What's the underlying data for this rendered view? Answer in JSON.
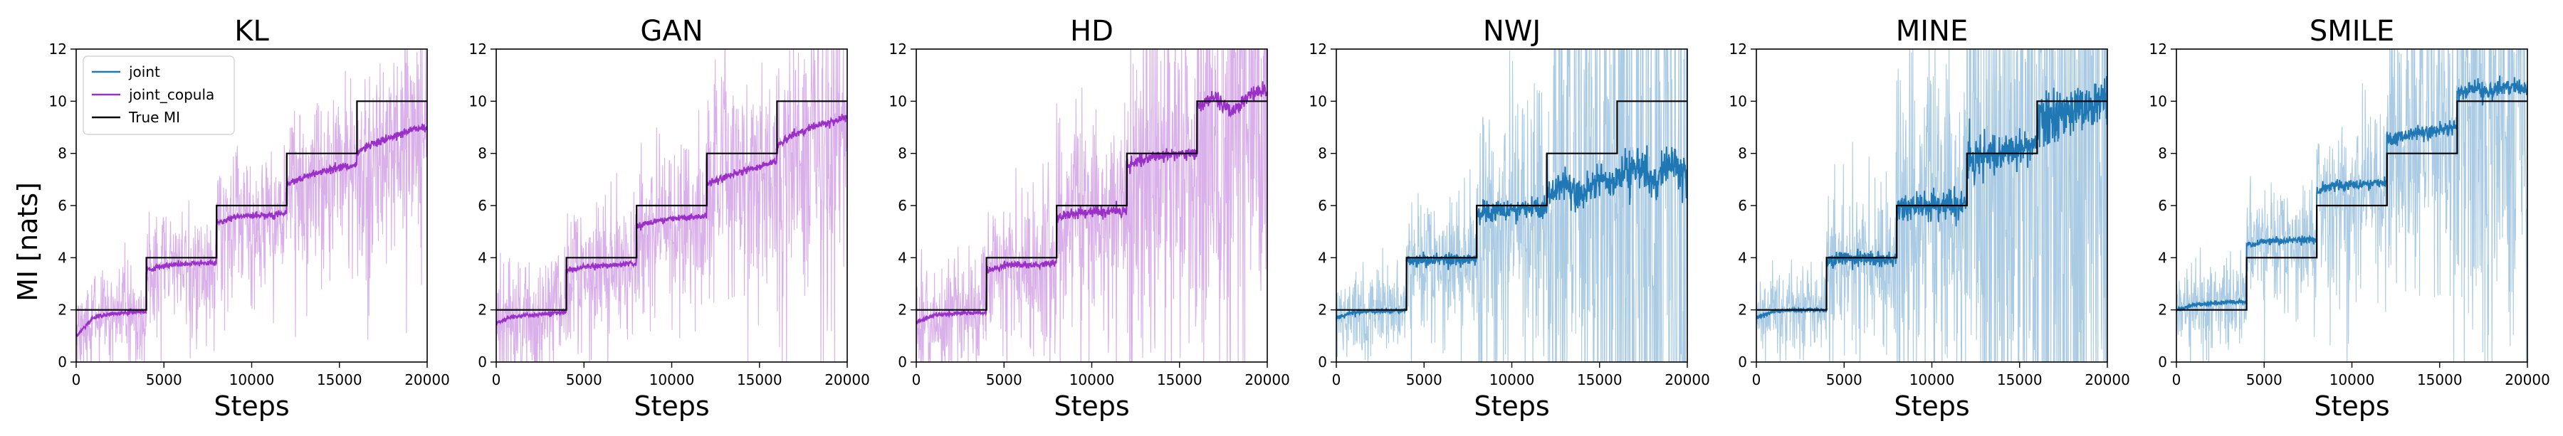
{
  "figure": {
    "ylabel": "MI [nats]",
    "legend_entries": [
      {
        "name": "joint",
        "color": "#1f77b4"
      },
      {
        "name": "joint_copula",
        "color": "#9b30c8"
      },
      {
        "name": "True MI",
        "color": "#000000"
      }
    ]
  },
  "chart_data": [
    {
      "type": "line",
      "title": "KL",
      "xlabel": "Steps",
      "xlim": [
        0,
        20000
      ],
      "ylim": [
        0,
        12
      ],
      "xticks": [
        0,
        5000,
        10000,
        15000,
        20000
      ],
      "yticks": [
        0,
        2,
        4,
        6,
        8,
        10,
        12
      ],
      "true_mi": {
        "name": "True MI",
        "x_breaks": [
          0,
          4000,
          8000,
          12000,
          16000,
          20000
        ],
        "levels": [
          2,
          4,
          6,
          8,
          10
        ]
      },
      "series": [
        {
          "name": "joint_copula",
          "color": "#9b30c8",
          "x": [
            0,
            1000,
            2000,
            3000,
            3999,
            4000,
            5000,
            6000,
            7000,
            7999,
            8000,
            9000,
            10000,
            11000,
            11999,
            12000,
            13000,
            14000,
            15000,
            15999,
            16000,
            17000,
            18000,
            19000,
            20000
          ],
          "y": [
            1.0,
            1.7,
            1.85,
            1.9,
            1.95,
            3.5,
            3.7,
            3.75,
            3.8,
            3.8,
            5.3,
            5.55,
            5.6,
            5.65,
            5.7,
            6.8,
            7.1,
            7.3,
            7.45,
            7.55,
            8.0,
            8.4,
            8.6,
            8.9,
            9.05
          ],
          "noise": 0.9,
          "noise_growth": 0.25
        }
      ]
    },
    {
      "type": "line",
      "title": "GAN",
      "xlabel": "Steps",
      "xlim": [
        0,
        20000
      ],
      "ylim": [
        0,
        12
      ],
      "xticks": [
        0,
        5000,
        10000,
        15000,
        20000
      ],
      "yticks": [
        0,
        2,
        4,
        6,
        8,
        10,
        12
      ],
      "true_mi": {
        "name": "True MI",
        "x_breaks": [
          0,
          4000,
          8000,
          12000,
          16000,
          20000
        ],
        "levels": [
          2,
          4,
          6,
          8,
          10
        ]
      },
      "series": [
        {
          "name": "joint_copula",
          "color": "#9b30c8",
          "x": [
            0,
            1000,
            2000,
            3000,
            3999,
            4000,
            5000,
            6000,
            7000,
            7999,
            8000,
            9000,
            10000,
            11000,
            11999,
            12000,
            13000,
            14000,
            15000,
            15999,
            16000,
            17000,
            18000,
            19000,
            20000
          ],
          "y": [
            1.5,
            1.75,
            1.8,
            1.85,
            1.9,
            3.5,
            3.65,
            3.7,
            3.75,
            3.8,
            5.2,
            5.4,
            5.5,
            5.55,
            5.6,
            6.8,
            7.1,
            7.3,
            7.5,
            7.7,
            8.3,
            8.7,
            9.0,
            9.2,
            9.4
          ],
          "noise": 1.2,
          "noise_growth": 0.25
        }
      ]
    },
    {
      "type": "line",
      "title": "HD",
      "xlabel": "Steps",
      "xlim": [
        0,
        20000
      ],
      "ylim": [
        0,
        12
      ],
      "xticks": [
        0,
        5000,
        10000,
        15000,
        20000
      ],
      "yticks": [
        0,
        2,
        4,
        6,
        8,
        10,
        12
      ],
      "true_mi": {
        "name": "True MI",
        "x_breaks": [
          0,
          4000,
          8000,
          12000,
          16000,
          20000
        ],
        "levels": [
          2,
          4,
          6,
          8,
          10
        ]
      },
      "series": [
        {
          "name": "joint_copula",
          "color": "#9b30c8",
          "x": [
            0,
            1000,
            2000,
            3000,
            3999,
            4000,
            5000,
            6000,
            7000,
            7999,
            8000,
            9000,
            10000,
            11000,
            11999,
            12000,
            13000,
            14000,
            15000,
            15999,
            16000,
            17000,
            18000,
            19000,
            20000
          ],
          "y": [
            1.5,
            1.8,
            1.85,
            1.9,
            1.9,
            3.5,
            3.7,
            3.75,
            3.75,
            3.8,
            5.5,
            5.7,
            5.75,
            5.75,
            5.8,
            7.5,
            7.8,
            7.9,
            7.95,
            8.0,
            9.8,
            10.1,
            9.6,
            10.2,
            10.5
          ],
          "noise": 1.1,
          "noise_growth": 0.7
        }
      ]
    },
    {
      "type": "line",
      "title": "NWJ",
      "xlabel": "Steps",
      "xlim": [
        0,
        20000
      ],
      "ylim": [
        0,
        12
      ],
      "xticks": [
        0,
        5000,
        10000,
        15000,
        20000
      ],
      "yticks": [
        0,
        2,
        4,
        6,
        8,
        10,
        12
      ],
      "true_mi": {
        "name": "True MI",
        "x_breaks": [
          0,
          4000,
          8000,
          12000,
          16000,
          20000
        ],
        "levels": [
          2,
          4,
          6,
          8,
          10
        ]
      },
      "series": [
        {
          "name": "joint",
          "color": "#1f77b4",
          "x": [
            0,
            1000,
            2000,
            3000,
            3999,
            4000,
            5000,
            6000,
            7000,
            7999,
            8000,
            9000,
            10000,
            11000,
            11999,
            12000,
            13000,
            14000,
            15000,
            15999,
            16000,
            17000,
            18000,
            19000,
            20000
          ],
          "y": [
            1.7,
            1.9,
            1.95,
            1.95,
            2.0,
            3.8,
            3.9,
            3.95,
            3.95,
            4.0,
            5.6,
            5.8,
            5.85,
            5.9,
            5.9,
            6.5,
            6.8,
            6.4,
            7.0,
            6.9,
            7.0,
            7.5,
            6.8,
            7.6,
            7.2
          ],
          "noise": 0.8,
          "noise_growth": 2.2
        }
      ]
    },
    {
      "type": "line",
      "title": "MINE",
      "xlabel": "Steps",
      "xlim": [
        0,
        20000
      ],
      "ylim": [
        0,
        12
      ],
      "xticks": [
        0,
        5000,
        10000,
        15000,
        20000
      ],
      "yticks": [
        0,
        2,
        4,
        6,
        8,
        10,
        12
      ],
      "true_mi": {
        "name": "True MI",
        "x_breaks": [
          0,
          4000,
          8000,
          12000,
          16000,
          20000
        ],
        "levels": [
          2,
          4,
          6,
          8,
          10
        ]
      },
      "series": [
        {
          "name": "joint",
          "color": "#1f77b4",
          "x": [
            0,
            1000,
            2000,
            3000,
            3999,
            4000,
            5000,
            6000,
            7000,
            7999,
            8000,
            9000,
            10000,
            11000,
            11999,
            12000,
            13000,
            14000,
            15000,
            15999,
            16000,
            17000,
            18000,
            19000,
            20000
          ],
          "y": [
            1.7,
            1.95,
            2.0,
            2.0,
            2.0,
            3.85,
            3.95,
            3.95,
            4.0,
            4.0,
            5.85,
            5.95,
            6.0,
            6.0,
            6.0,
            7.7,
            7.9,
            8.0,
            8.1,
            8.2,
            9.2,
            9.5,
            9.7,
            9.8,
            10.0
          ],
          "noise": 0.8,
          "noise_growth": 2.8
        }
      ]
    },
    {
      "type": "line",
      "title": "SMILE",
      "xlabel": "Steps",
      "xlim": [
        0,
        20000
      ],
      "ylim": [
        0,
        12
      ],
      "xticks": [
        0,
        5000,
        10000,
        15000,
        20000
      ],
      "yticks": [
        0,
        2,
        4,
        6,
        8,
        10,
        12
      ],
      "true_mi": {
        "name": "True MI",
        "x_breaks": [
          0,
          4000,
          8000,
          12000,
          16000,
          20000
        ],
        "levels": [
          2,
          4,
          6,
          8,
          10
        ]
      },
      "series": [
        {
          "name": "joint",
          "color": "#1f77b4",
          "x": [
            0,
            1000,
            2000,
            3000,
            3999,
            4000,
            5000,
            6000,
            7000,
            7999,
            8000,
            9000,
            10000,
            11000,
            11999,
            12000,
            13000,
            14000,
            15000,
            15999,
            16000,
            17000,
            18000,
            19000,
            20000
          ],
          "y": [
            2.0,
            2.2,
            2.25,
            2.3,
            2.3,
            4.5,
            4.6,
            4.65,
            4.7,
            4.7,
            6.6,
            6.75,
            6.8,
            6.85,
            6.9,
            8.5,
            8.7,
            8.8,
            8.9,
            9.0,
            10.3,
            10.5,
            10.3,
            10.6,
            10.4
          ],
          "noise": 0.9,
          "noise_growth": 0.8
        }
      ]
    }
  ]
}
